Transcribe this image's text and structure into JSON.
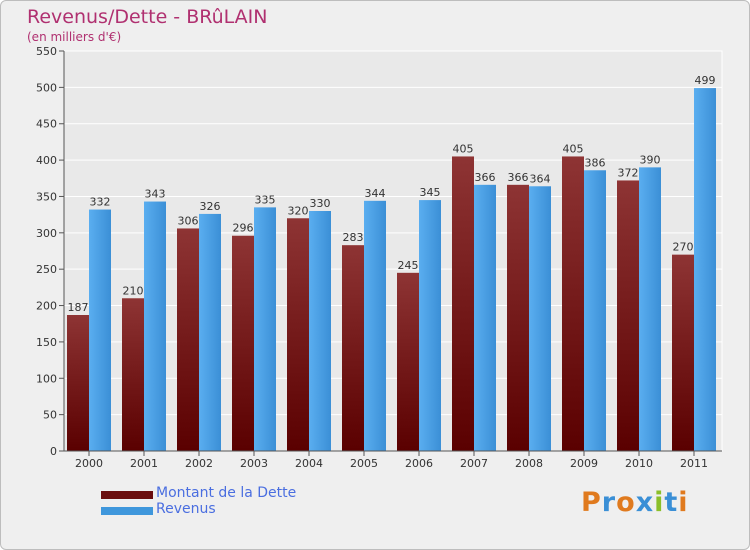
{
  "header": {
    "title": "Revenus/Dette - BRûLAIN",
    "subtitle": "(en milliers d'€)"
  },
  "legend": {
    "items": [
      {
        "label": "Montant de la Dette",
        "color": "#6b0d0d"
      },
      {
        "label": "Revenus",
        "color": "#3f97dc"
      }
    ]
  },
  "logo": {
    "letters": [
      "P",
      "r",
      "o",
      "x",
      "i",
      "t",
      "i"
    ],
    "colors": [
      "#e07a1e",
      "#3a8fd6",
      "#e07a1e",
      "#3a8fd6",
      "#8bbf2a",
      "#3a8fd6",
      "#e07a1e"
    ]
  },
  "chart_data": {
    "type": "bar",
    "title": "Revenus/Dette - BRûLAIN",
    "subtitle": "(en milliers d'€)",
    "categories": [
      "2000",
      "2001",
      "2002",
      "2003",
      "2004",
      "2005",
      "2006",
      "2007",
      "2008",
      "2009",
      "2010",
      "2011"
    ],
    "series": [
      {
        "name": "Montant de la Dette",
        "color": "#7a1a1a",
        "values": [
          187,
          210,
          306,
          296,
          320,
          283,
          245,
          405,
          366,
          405,
          372,
          270
        ]
      },
      {
        "name": "Revenus",
        "color": "#3f97dc",
        "values": [
          332,
          343,
          326,
          335,
          330,
          344,
          345,
          366,
          364,
          386,
          390,
          499
        ]
      }
    ],
    "ylim": [
      0,
      550
    ],
    "yticks": [
      0,
      50,
      100,
      150,
      200,
      250,
      300,
      350,
      400,
      450,
      500,
      550
    ],
    "grid": true,
    "legend_position": "bottom-left"
  }
}
